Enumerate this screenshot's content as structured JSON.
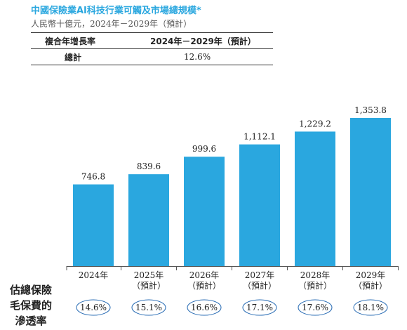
{
  "header": {
    "title": "中國保險業AI科技行業可觸及市場總規模*",
    "subtitle": "人民幣十億元，2024年－2029年（預計）"
  },
  "cagr_table": {
    "col1_header": "複合年增長率",
    "col2_header": "2024年－2029年（預計）",
    "row_label": "總計",
    "row_value": "12.6%"
  },
  "penetration_label": [
    "估總保險",
    "毛保費的",
    "滲透率"
  ],
  "colors": {
    "bar": "#2aa7df",
    "title": "#2aa7df",
    "ellipse_stroke": "#2a6db5"
  },
  "chart_data": {
    "type": "bar",
    "title": "中國保險業AI科技行業可觸及市場總規模*",
    "ylabel": "",
    "ylim": [
      0,
      1400
    ],
    "categories": [
      [
        "2024年"
      ],
      [
        "2025年",
        "（預計）"
      ],
      [
        "2026年",
        "（預計）"
      ],
      [
        "2027年",
        "（預計）"
      ],
      [
        "2028年",
        "（預計）"
      ],
      [
        "2029年",
        "（預計）"
      ]
    ],
    "values": [
      746.8,
      839.6,
      999.6,
      1112.1,
      1229.2,
      1353.8
    ],
    "value_labels": [
      "746.8",
      "839.6",
      "999.6",
      "1,112.1",
      "1,229.2",
      "1,353.8"
    ],
    "penetration_rates": [
      "14.6%",
      "15.1%",
      "16.6%",
      "17.1%",
      "17.6%",
      "18.1%"
    ]
  }
}
